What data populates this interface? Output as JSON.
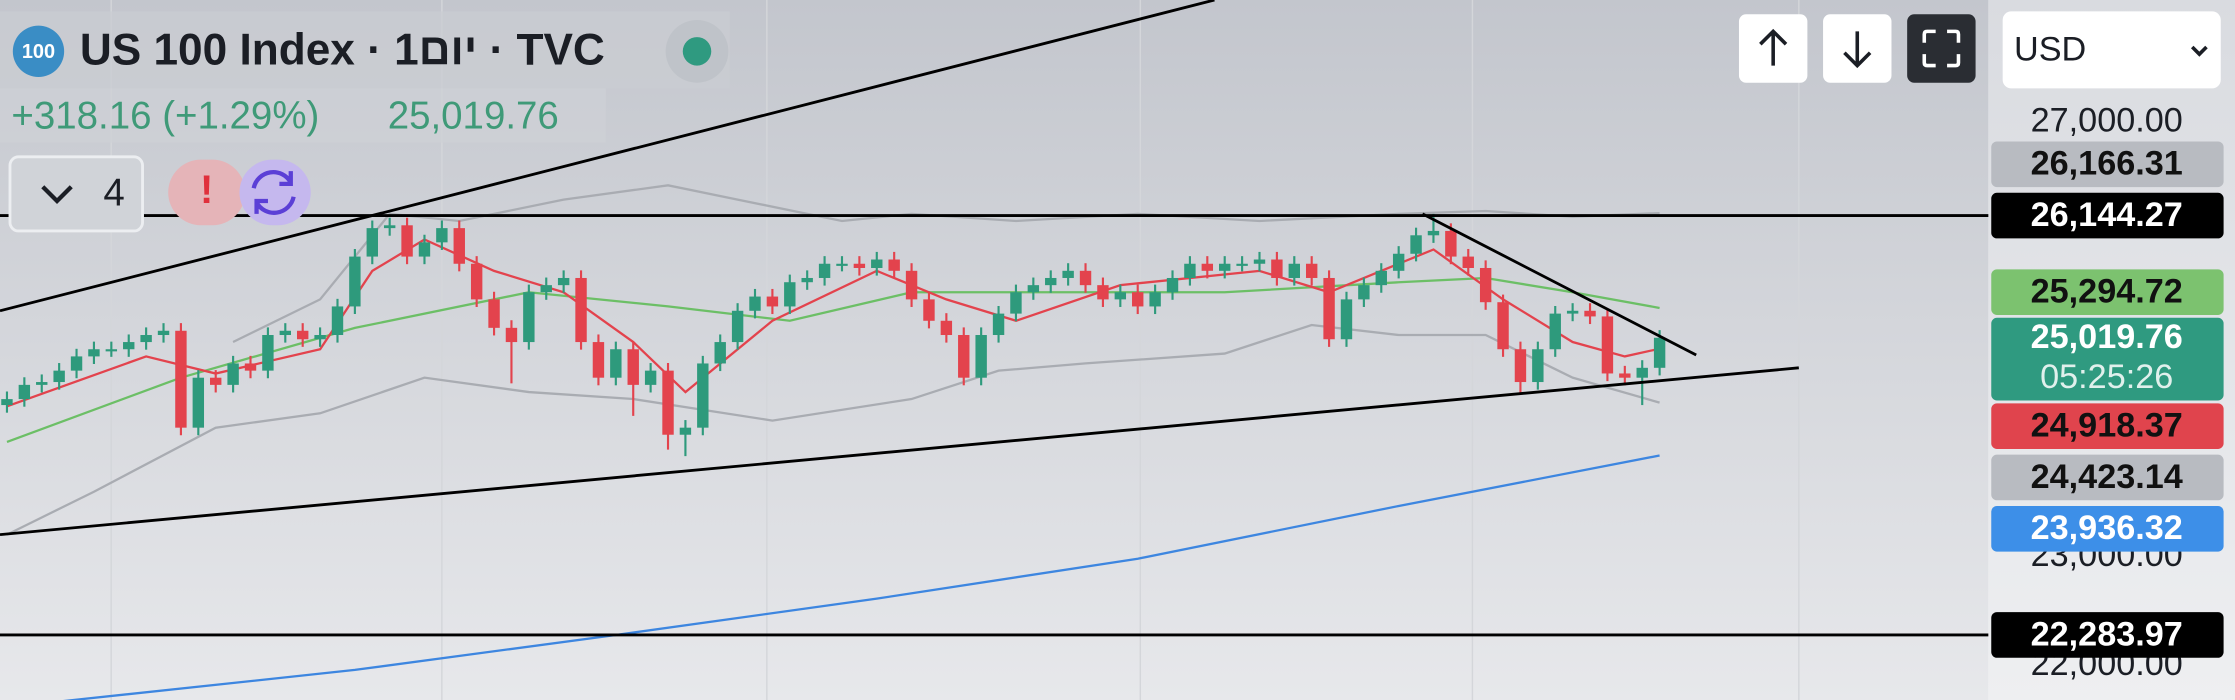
{
  "header": {
    "logo": "100",
    "title": "US 100 Index · 1יום · TVC",
    "change": "+318.16 (+1.29%)",
    "price": "25,019.76",
    "indicator_count": 4
  },
  "toolbar": {
    "currency": "USD"
  },
  "chart_data": {
    "type": "candlestick",
    "xlim": [
      -0.4,
      113.9
    ],
    "ylim": [
      21685,
      28129
    ],
    "up_color": "#2e9a7c",
    "down_color": "#e3434d",
    "open": [
      24400,
      24455,
      24586,
      24612,
      24717,
      24848,
      24914,
      24914,
      24980,
      25045,
      25084,
      24192,
      24652,
      24586,
      24783,
      24717,
      25045,
      25084,
      25006,
      25045,
      25308,
      25767,
      26029,
      26055,
      25767,
      25898,
      26029,
      25701,
      25373,
      25111,
      24980,
      25439,
      25504,
      25570,
      24980,
      24652,
      24914,
      24586,
      24717,
      24127,
      24192,
      24783,
      24980,
      25268,
      25399,
      25308,
      25531,
      25570,
      25701,
      25701,
      25662,
      25740,
      25636,
      25373,
      25176,
      25045,
      24652,
      25045,
      25242,
      25439,
      25504,
      25570,
      25636,
      25504,
      25373,
      25439,
      25308,
      25439,
      25570,
      25701,
      25636,
      25701,
      25701,
      25740,
      25570,
      25701,
      25570,
      25006,
      25373,
      25504,
      25636,
      25793,
      25963,
      26003,
      25767,
      25662,
      25347,
      24914,
      24612,
      24914,
      25242,
      25268,
      25216,
      24691,
      24652,
      24743
    ],
    "high": [
      24525,
      24656,
      24682,
      24787,
      24918,
      24984,
      24984,
      25050,
      25115,
      25154,
      25154,
      24722,
      24722,
      24853,
      24853,
      25115,
      25154,
      25154,
      25115,
      25378,
      25837,
      26099,
      26125,
      26125,
      25968,
      26099,
      26099,
      25771,
      25443,
      25181,
      25509,
      25574,
      25640,
      25640,
      25050,
      24984,
      24984,
      24787,
      24787,
      24262,
      24853,
      25050,
      25338,
      25469,
      25469,
      25601,
      25640,
      25771,
      25771,
      25771,
      25810,
      25810,
      25706,
      25443,
      25246,
      25115,
      25115,
      25312,
      25509,
      25574,
      25640,
      25706,
      25706,
      25574,
      25509,
      25509,
      25509,
      25640,
      25771,
      25771,
      25771,
      25771,
      25810,
      25810,
      25771,
      25771,
      25640,
      25443,
      25574,
      25706,
      25863,
      26033,
      26160,
      26073,
      25837,
      25732,
      25417,
      24984,
      24984,
      25312,
      25338,
      25338,
      25286,
      24761,
      24813,
      25090
    ],
    "low": [
      24330,
      24385,
      24516,
      24542,
      24647,
      24778,
      24844,
      24844,
      24910,
      24975,
      24122,
      24122,
      24516,
      24516,
      24647,
      24647,
      24975,
      24936,
      24936,
      24975,
      25238,
      25697,
      25959,
      25697,
      25697,
      25828,
      25631,
      25303,
      25041,
      24600,
      24910,
      25369,
      25434,
      24910,
      24582,
      24582,
      24300,
      24516,
      23990,
      23930,
      24122,
      24713,
      24910,
      25198,
      25238,
      25238,
      25461,
      25500,
      25631,
      25592,
      25592,
      25566,
      25303,
      25106,
      24975,
      24582,
      24582,
      24975,
      25172,
      25369,
      25434,
      25500,
      25434,
      25303,
      25303,
      25238,
      25238,
      25369,
      25500,
      25566,
      25566,
      25631,
      25631,
      25500,
      25500,
      25500,
      24936,
      24936,
      25303,
      25434,
      25566,
      25723,
      25893,
      25697,
      25592,
      25277,
      24844,
      24500,
      24542,
      24844,
      25172,
      25146,
      24621,
      24582,
      24400,
      24673
    ],
    "close": [
      24455,
      24586,
      24612,
      24717,
      24848,
      24914,
      24914,
      24980,
      25045,
      25084,
      24192,
      24652,
      24586,
      24783,
      24717,
      25045,
      25084,
      25006,
      25045,
      25308,
      25767,
      26029,
      26055,
      25767,
      25898,
      26029,
      25701,
      25373,
      25111,
      24980,
      25439,
      25504,
      25570,
      24980,
      24652,
      24914,
      24586,
      24717,
      24127,
      24192,
      24783,
      24980,
      25268,
      25399,
      25308,
      25531,
      25570,
      25701,
      25701,
      25662,
      25740,
      25636,
      25373,
      25176,
      25045,
      24652,
      25045,
      25242,
      25439,
      25504,
      25570,
      25636,
      25504,
      25373,
      25439,
      25308,
      25439,
      25570,
      25701,
      25636,
      25701,
      25701,
      25740,
      25570,
      25701,
      25570,
      25006,
      25373,
      25504,
      25636,
      25793,
      25963,
      26003,
      25767,
      25662,
      25347,
      24914,
      24612,
      24914,
      25242,
      25268,
      25216,
      24691,
      24652,
      24743,
      25019.76
    ],
    "overlays": [
      {
        "color": "#a9acb2",
        "x": [
          13,
          18,
          22,
          26,
          32,
          38,
          42,
          48,
          52,
          58,
          65,
          72,
          80,
          85,
          90,
          95
        ],
        "values": [
          24980,
          25373,
          26160,
          26095,
          26292,
          26423,
          26292,
          26095,
          26160,
          26095,
          26160,
          26095,
          26160,
          26186,
          26134,
          26166.31
        ]
      },
      {
        "color": "#a9acb2",
        "x": [
          0,
          5,
          12,
          18,
          24,
          30,
          36,
          44,
          52,
          57,
          62,
          70,
          75,
          80,
          85,
          90,
          95
        ],
        "values": [
          23208,
          23602,
          24192,
          24324,
          24652,
          24520,
          24455,
          24258,
          24455,
          24717,
          24783,
          24874,
          25137,
          25045,
          25045,
          24652,
          24423.14
        ]
      },
      {
        "color": "#3d86e0",
        "x": [
          0,
          20,
          35,
          50,
          65,
          80,
          95
        ],
        "values": [
          21620,
          21962,
          22284,
          22618,
          22985,
          23471,
          23936.32
        ]
      },
      {
        "color": "#6cbf66",
        "x": [
          0,
          10,
          20,
          30,
          38,
          45,
          52,
          60,
          70,
          80,
          85,
          90,
          95
        ],
        "values": [
          24061,
          24652,
          25111,
          25439,
          25308,
          25176,
          25439,
          25439,
          25439,
          25531,
          25570,
          25439,
          25294.72
        ]
      },
      {
        "color": "#e3434d",
        "x": [
          0,
          8,
          12,
          18,
          21,
          24,
          28,
          32,
          36,
          39,
          44,
          50,
          54,
          58,
          64,
          72,
          76,
          82,
          86,
          90,
          93,
          95
        ],
        "values": [
          24389,
          24848,
          24691,
          24914,
          25636,
          25924,
          25636,
          25439,
          24980,
          24520,
          25176,
          25636,
          25373,
          25176,
          25504,
          25636,
          25439,
          25832,
          25373,
          24980,
          24848,
          24918.37
        ]
      }
    ],
    "yticks": [
      {
        "value": 27000,
        "label": "27,000.00"
      },
      {
        "value": 23000,
        "label": "23,000.00"
      },
      {
        "value": 22000,
        "label": "22,000.00"
      }
    ],
    "price_badges": [
      {
        "value": 26166.31,
        "label": "26,166.31",
        "color": "#b8bbc1",
        "text_color": "#111111"
      },
      {
        "value": 26144.27,
        "label": "26,144.27",
        "color": "#000000",
        "text_color": "#ffffff",
        "hline": true
      },
      {
        "value": 25294.72,
        "label": "25,294.72",
        "color": "#7cc26f",
        "text_color": "#111111"
      },
      {
        "value": 25019.76,
        "label": "25,019.76",
        "sub": "05:25:26",
        "color": "#2f9a80",
        "text_color": "#ffffff"
      },
      {
        "value": 24918.37,
        "label": "24,918.37",
        "color": "#e0444d",
        "text_color": "#111111"
      },
      {
        "value": 24423.14,
        "label": "24,423.14",
        "color": "#b8bbc1",
        "text_color": "#111111"
      },
      {
        "value": 23936.32,
        "label": "23,936.32",
        "color": "#3d8fe8",
        "text_color": "#ffffff"
      },
      {
        "value": 22283.97,
        "label": "22,283.97",
        "color": "#000000",
        "text_color": "#ffffff",
        "hline": true
      }
    ]
  }
}
